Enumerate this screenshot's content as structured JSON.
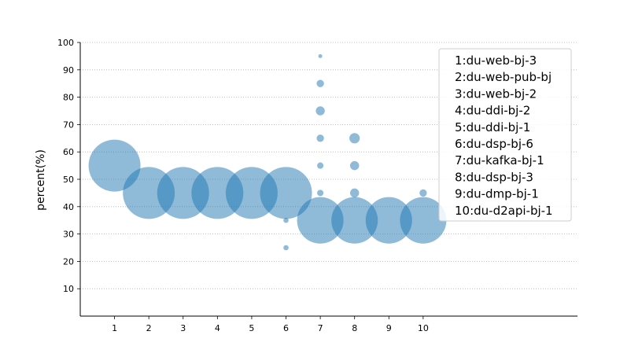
{
  "chart_data": {
    "type": "scatter",
    "title": "",
    "xlabel": "",
    "ylabel": "percent(%)",
    "xlim": [
      0,
      14.5
    ],
    "ylim": [
      0,
      100
    ],
    "x_ticks": [
      1,
      2,
      3,
      4,
      5,
      6,
      7,
      8,
      9,
      10
    ],
    "y_ticks": [
      10,
      20,
      30,
      40,
      50,
      60,
      70,
      80,
      90,
      100
    ],
    "grid": "horizontal dotted",
    "legend_position": "top-right",
    "legend": [
      "1:du-web-bj-3",
      "2:du-web-pub-bj",
      "3:du-web-bj-2",
      "4:du-ddi-bj-2",
      "5:du-ddi-bj-1",
      "6:du-dsp-bj-6",
      "7:du-kafka-bj-1",
      "8:du-dsp-bj-3",
      "9:du-dmp-bj-1",
      "10:du-d2api-bj-1"
    ],
    "color": "#1f77b4",
    "opacity": 0.5,
    "points": [
      {
        "x": 1,
        "y": 55,
        "size": 10
      },
      {
        "x": 2,
        "y": 45,
        "size": 10
      },
      {
        "x": 3,
        "y": 45,
        "size": 10
      },
      {
        "x": 4,
        "y": 45,
        "size": 10
      },
      {
        "x": 5,
        "y": 45,
        "size": 10
      },
      {
        "x": 6,
        "y": 45,
        "size": 10
      },
      {
        "x": 6,
        "y": 35,
        "size": 0.1
      },
      {
        "x": 6,
        "y": 25,
        "size": 0.1
      },
      {
        "x": 7,
        "y": 95,
        "size": 0.05
      },
      {
        "x": 7,
        "y": 85,
        "size": 0.2
      },
      {
        "x": 7,
        "y": 75,
        "size": 0.3
      },
      {
        "x": 7,
        "y": 65,
        "size": 0.2
      },
      {
        "x": 7,
        "y": 55,
        "size": 0.15
      },
      {
        "x": 7,
        "y": 45,
        "size": 0.15
      },
      {
        "x": 7,
        "y": 35,
        "size": 8
      },
      {
        "x": 8,
        "y": 65,
        "size": 0.4
      },
      {
        "x": 8,
        "y": 55,
        "size": 0.3
      },
      {
        "x": 8,
        "y": 45,
        "size": 0.3
      },
      {
        "x": 8,
        "y": 35,
        "size": 8
      },
      {
        "x": 9,
        "y": 35,
        "size": 8
      },
      {
        "x": 10,
        "y": 45,
        "size": 0.2
      },
      {
        "x": 10,
        "y": 35,
        "size": 8
      }
    ]
  }
}
